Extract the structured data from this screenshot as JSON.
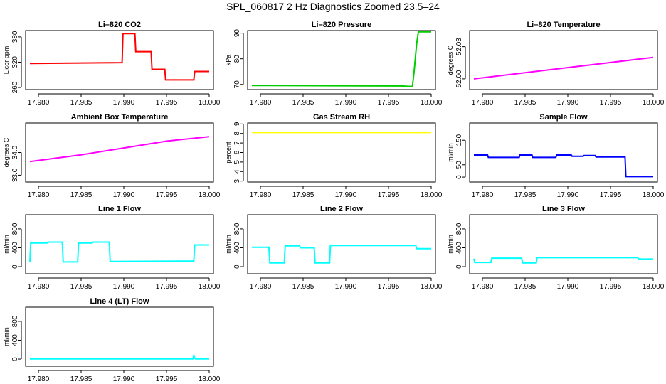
{
  "figure": {
    "title": "SPL_060817  2 Hz Diagnostics Zoomed 23.5–24"
  },
  "chart_data": [
    {
      "type": "line",
      "title": "Li–820 CO2",
      "ylabel": "Licor ppm",
      "color": "#ff0000",
      "xlim": [
        17.9785,
        18.0005
      ],
      "ylim": [
        255,
        395
      ],
      "xticks": [
        "17.980",
        "17.985",
        "17.990",
        "17.995",
        "18.000"
      ],
      "yticks": [
        "260",
        "320",
        "380"
      ],
      "series": [
        {
          "name": "Li-820 CO2",
          "x": [
            17.979,
            17.9898,
            17.9899,
            17.9913,
            17.9914,
            17.9932,
            17.9933,
            17.9948,
            17.9949,
            17.9982,
            17.9983,
            18.0
          ],
          "y": [
            317,
            319,
            388,
            388,
            345,
            345,
            303,
            303,
            278,
            278,
            298,
            298
          ]
        }
      ]
    },
    {
      "type": "line",
      "title": "Li–820 Pressure",
      "ylabel": "kPa",
      "color": "#00cc00",
      "xlim": [
        17.9785,
        18.0005
      ],
      "ylim": [
        68,
        91
      ],
      "xticks": [
        "17.980",
        "17.985",
        "17.990",
        "17.995",
        "18.000"
      ],
      "yticks": [
        "70",
        "80",
        "90"
      ],
      "series": [
        {
          "name": "Li-820 Pressure",
          "x": [
            17.979,
            17.9965,
            17.9978,
            17.998,
            17.9983,
            17.9985,
            18.0
          ],
          "y": [
            69.6,
            69.4,
            69.2,
            75,
            86,
            90.5,
            90.5
          ]
        }
      ]
    },
    {
      "type": "line",
      "title": "Li–820 Temperature",
      "ylabel": "degrees C",
      "color": "#ff00ff",
      "xlim": [
        17.9785,
        18.0005
      ],
      "ylim": [
        51.99,
        52.045
      ],
      "xticks": [
        "17.980",
        "17.985",
        "17.990",
        "17.995",
        "18.000"
      ],
      "yticks": [
        "52.00",
        "52.03"
      ],
      "series": [
        {
          "name": "Li-820 Temperature",
          "x": [
            17.979,
            18.0
          ],
          "y": [
            52.0,
            52.02
          ]
        }
      ]
    },
    {
      "type": "line",
      "title": "Ambient Box Temperature",
      "ylabel": "degrees C",
      "color": "#ff00ff",
      "xlim": [
        17.9785,
        18.0005
      ],
      "ylim": [
        32.7,
        35.3
      ],
      "xticks": [
        "17.980",
        "17.985",
        "17.990",
        "17.995",
        "18.000"
      ],
      "yticks": [
        "33.0",
        "34.0"
      ],
      "series": [
        {
          "name": "Ambient Box Temperature",
          "x": [
            17.979,
            17.985,
            17.99,
            17.995,
            18.0
          ],
          "y": [
            33.6,
            33.9,
            34.2,
            34.5,
            34.7
          ]
        }
      ]
    },
    {
      "type": "line",
      "title": "Gas Stream RH",
      "ylabel": "percent",
      "color": "#ffff00",
      "xlim": [
        17.9785,
        18.0005
      ],
      "ylim": [
        2.9,
        9.1
      ],
      "xticks": [
        "17.980",
        "17.985",
        "17.990",
        "17.995",
        "18.000"
      ],
      "yticks": [
        "3",
        "4",
        "5",
        "6",
        "7",
        "8",
        "9"
      ],
      "series": [
        {
          "name": "Gas Stream RH",
          "x": [
            17.979,
            18.0
          ],
          "y": [
            8.1,
            8.1
          ]
        }
      ]
    },
    {
      "type": "line",
      "title": "Sample Flow",
      "ylabel": "ml/min",
      "color": "#0000ff",
      "xlim": [
        17.9785,
        18.0005
      ],
      "ylim": [
        -20,
        220
      ],
      "xticks": [
        "17.980",
        "17.985",
        "17.990",
        "17.995",
        "18.000"
      ],
      "yticks": [
        "0",
        "50",
        "150"
      ],
      "series": [
        {
          "name": "Sample Flow",
          "x": [
            17.979,
            17.9806,
            17.9807,
            17.9843,
            17.9844,
            17.9858,
            17.9859,
            17.9886,
            17.9887,
            17.9904,
            17.9905,
            17.9918,
            17.9919,
            17.9932,
            17.9933,
            17.9967,
            17.9968,
            18.0
          ],
          "y": [
            90,
            90,
            80,
            80,
            90,
            90,
            80,
            80,
            90,
            90,
            85,
            85,
            88,
            88,
            82,
            82,
            2,
            2
          ]
        }
      ]
    },
    {
      "type": "line",
      "title": "Line 1 Flow",
      "ylabel": "ml/min",
      "color": "#00ffff",
      "xlim": [
        17.9785,
        18.0005
      ],
      "ylim": [
        -150,
        1100
      ],
      "xticks": [
        "17.980",
        "17.985",
        "17.990",
        "17.995",
        "18.000"
      ],
      "yticks": [
        "0",
        "400",
        "800"
      ],
      "series": [
        {
          "name": "Line 1 Flow",
          "x": [
            17.979,
            17.9791,
            17.981,
            17.9811,
            17.9828,
            17.9829,
            17.9846,
            17.9847,
            17.9863,
            17.9864,
            17.9883,
            17.9884,
            17.9982,
            17.9983,
            18.0
          ],
          "y": [
            100,
            500,
            500,
            520,
            520,
            100,
            100,
            500,
            500,
            520,
            520,
            110,
            120,
            460,
            460
          ]
        }
      ]
    },
    {
      "type": "line",
      "title": "Line 2 Flow",
      "ylabel": "ml/min",
      "color": "#00ffff",
      "xlim": [
        17.9785,
        18.0005
      ],
      "ylim": [
        -150,
        1100
      ],
      "xticks": [
        "17.980",
        "17.985",
        "17.990",
        "17.995",
        "18.000"
      ],
      "yticks": [
        "0",
        "400",
        "800"
      ],
      "series": [
        {
          "name": "Line 2 Flow",
          "x": [
            17.979,
            17.981,
            17.9811,
            17.9828,
            17.9829,
            17.9846,
            17.9847,
            17.9863,
            17.9864,
            17.9881,
            17.9882,
            17.9982,
            17.9983,
            18.0
          ],
          "y": [
            410,
            410,
            80,
            80,
            440,
            440,
            400,
            400,
            80,
            80,
            450,
            450,
            380,
            380
          ]
        }
      ]
    },
    {
      "type": "line",
      "title": "Line 3 Flow",
      "ylabel": "ml/min",
      "color": "#00ffff",
      "xlim": [
        17.9785,
        18.0005
      ],
      "ylim": [
        -150,
        1100
      ],
      "xticks": [
        "17.980",
        "17.985",
        "17.990",
        "17.995",
        "18.000"
      ],
      "yticks": [
        "0",
        "400",
        "800"
      ],
      "series": [
        {
          "name": "Line 3 Flow",
          "x": [
            17.979,
            17.9791,
            17.981,
            17.9811,
            17.9846,
            17.9847,
            17.9863,
            17.9864,
            17.9982,
            17.9983,
            18.0
          ],
          "y": [
            170,
            90,
            90,
            180,
            180,
            80,
            80,
            190,
            190,
            160,
            160
          ]
        }
      ]
    },
    {
      "type": "line",
      "title": "Line 4 (LT) Flow",
      "ylabel": "ml/min",
      "color": "#00ffff",
      "xlim": [
        17.9785,
        18.0005
      ],
      "ylim": [
        -150,
        1100
      ],
      "xticks": [
        "17.980",
        "17.985",
        "17.990",
        "17.995",
        "18.000"
      ],
      "yticks": [
        "0",
        "400",
        "800"
      ],
      "series": [
        {
          "name": "Line 4 (LT) Flow",
          "x": [
            17.979,
            17.9981,
            17.9982,
            17.9983,
            17.9984,
            18.0
          ],
          "y": [
            5,
            5,
            90,
            20,
            5,
            5
          ]
        }
      ]
    }
  ]
}
